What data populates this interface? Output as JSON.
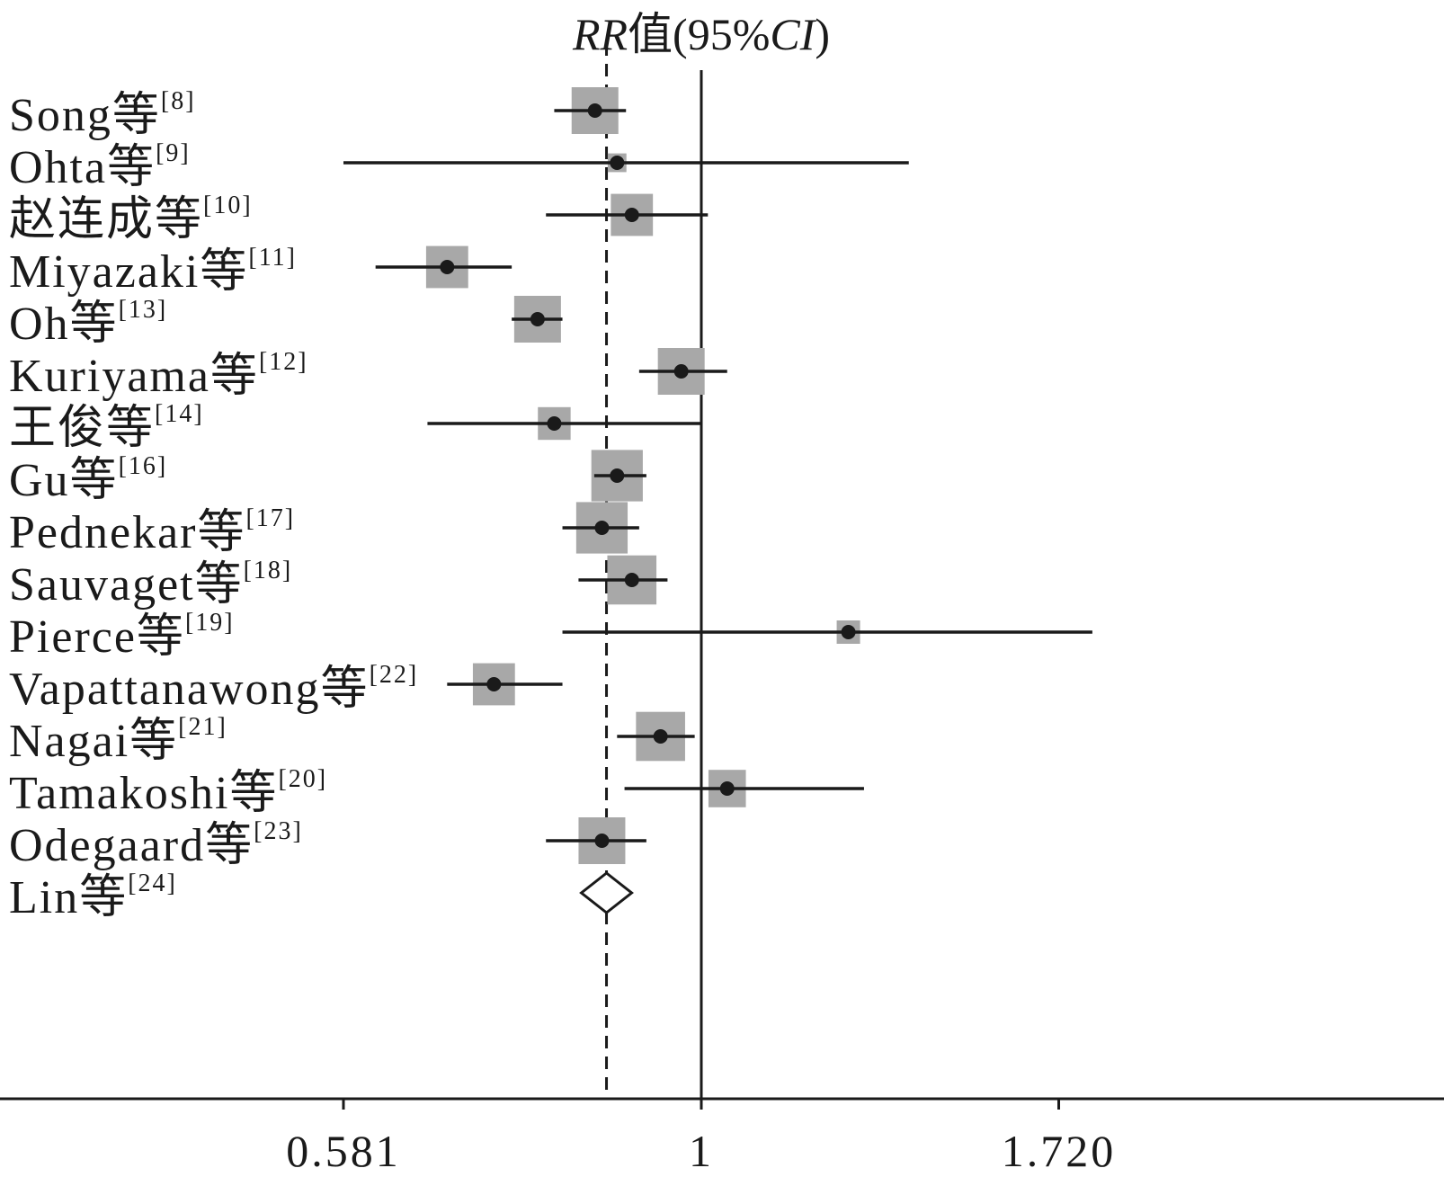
{
  "chart_data": {
    "type": "forest",
    "title": "RR值(95%CI)",
    "title_parts": [
      {
        "text": "RR",
        "italic": true
      },
      {
        "text": "值(95%",
        "italic": false
      },
      {
        "text": "CI",
        "italic": true
      },
      {
        "text": ")",
        "italic": false
      }
    ],
    "x_scale": "log",
    "reference_line": 1,
    "pooled_line": 0.866,
    "xlim": [
      0.33,
      3.05
    ],
    "ticks": [
      {
        "value": 0.581,
        "label": "0.581"
      },
      {
        "value": 1,
        "label": "1"
      },
      {
        "value": 1.72,
        "label": "1.720"
      }
    ],
    "studies": [
      {
        "name": "Song等",
        "ref": "[8]",
        "rr": 0.851,
        "lower": 0.8,
        "upper": 0.892,
        "weight": 1.0
      },
      {
        "name": "Ohta等",
        "ref": "[9]",
        "rr": 0.88,
        "lower": 0.581,
        "upper": 1.37,
        "weight": 0.4
      },
      {
        "name": "赵连成等",
        "ref": "[10]",
        "rr": 0.9,
        "lower": 0.79,
        "upper": 1.01,
        "weight": 0.9
      },
      {
        "name": "Miyazaki等",
        "ref": "[11]",
        "rr": 0.68,
        "lower": 0.61,
        "upper": 0.75,
        "weight": 0.9
      },
      {
        "name": "Oh等",
        "ref": "[13]",
        "rr": 0.78,
        "lower": 0.75,
        "upper": 0.81,
        "weight": 1.0
      },
      {
        "name": "Kuriyama等",
        "ref": "[12]",
        "rr": 0.97,
        "lower": 0.91,
        "upper": 1.04,
        "weight": 1.0
      },
      {
        "name": "王俊等",
        "ref": "[14]",
        "rr": 0.8,
        "lower": 0.66,
        "upper": 1.0,
        "weight": 0.7
      },
      {
        "name": "Gu等",
        "ref": "[16]",
        "rr": 0.88,
        "lower": 0.85,
        "upper": 0.92,
        "weight": 1.1
      },
      {
        "name": "Pednekar等",
        "ref": "[17]",
        "rr": 0.86,
        "lower": 0.81,
        "upper": 0.91,
        "weight": 1.1
      },
      {
        "name": "Sauvaget等",
        "ref": "[18]",
        "rr": 0.9,
        "lower": 0.83,
        "upper": 0.95,
        "weight": 1.05
      },
      {
        "name": "Pierce等",
        "ref": "[19]",
        "rr": 1.25,
        "lower": 0.81,
        "upper": 1.81,
        "weight": 0.5
      },
      {
        "name": "Vapattanawong等",
        "ref": "[22]",
        "rr": 0.73,
        "lower": 0.68,
        "upper": 0.81,
        "weight": 0.9
      },
      {
        "name": "Nagai等",
        "ref": "[21]",
        "rr": 0.94,
        "lower": 0.88,
        "upper": 0.99,
        "weight": 1.05
      },
      {
        "name": "Tamakoshi等",
        "ref": "[20]",
        "rr": 1.04,
        "lower": 0.89,
        "upper": 1.28,
        "weight": 0.8
      },
      {
        "name": "Odegaard等",
        "ref": "[23]",
        "rr": 0.86,
        "lower": 0.79,
        "upper": 0.92,
        "weight": 1.0
      },
      {
        "name": "Lin等",
        "ref": "[24]",
        "rr": 0.866,
        "lower": 0.81,
        "upper": 0.93,
        "weight": 0,
        "pooled": true
      }
    ],
    "colors": {
      "line": "#1a1a1a",
      "box": "#a8a8a8",
      "point": "#1a1a1a",
      "background": "#ffffff"
    },
    "grid": false
  }
}
